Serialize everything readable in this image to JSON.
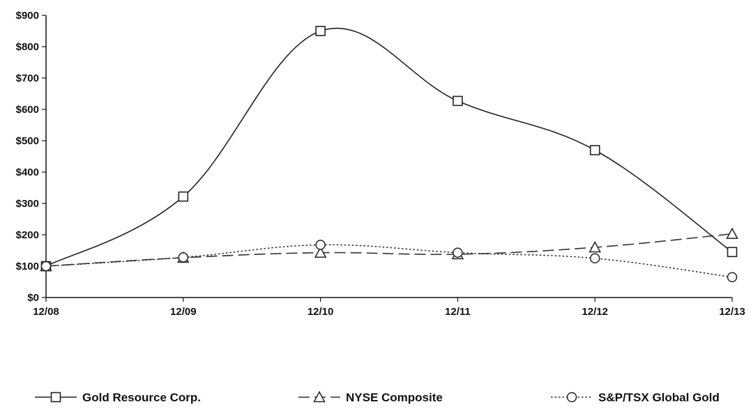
{
  "chart_data": {
    "type": "line",
    "categories": [
      "12/08",
      "12/09",
      "12/10",
      "12/11",
      "12/12",
      "12/13"
    ],
    "y_ticks": [
      "$0",
      "$100",
      "$200",
      "$300",
      "$400",
      "$500",
      "$600",
      "$700",
      "$800",
      "$900"
    ],
    "ylim": [
      0,
      900
    ],
    "grid": false,
    "legend_position": "bottom",
    "series": [
      {
        "name": "Gold Resource Corp.",
        "values": [
          100,
          322,
          850,
          627,
          470,
          145
        ],
        "marker": "square",
        "dash": "solid",
        "color": "#222222"
      },
      {
        "name": "NYSE Composite",
        "values": [
          100,
          127,
          143,
          138,
          160,
          203
        ],
        "marker": "triangle",
        "dash": "long-dash",
        "color": "#333333"
      },
      {
        "name": "S&P/TSX Global Gold",
        "values": [
          100,
          128,
          168,
          143,
          125,
          65
        ],
        "marker": "circle",
        "dash": "dotted",
        "color": "#333333"
      }
    ]
  }
}
